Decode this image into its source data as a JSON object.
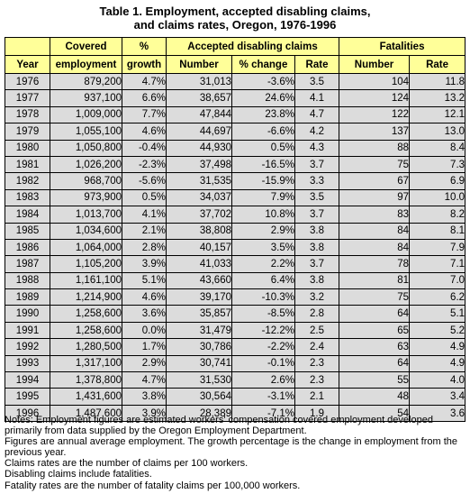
{
  "title": {
    "line1": "Table 1.  Employment, accepted disabling claims,",
    "line2": "and claims rates, Oregon, 1976-1996"
  },
  "headers": {
    "covered": "Covered",
    "pct": "%",
    "accepted_group": "Accepted disabling claims",
    "fatalities_group": "Fatalities",
    "year": "Year",
    "employment": "employment",
    "growth": "growth",
    "number": "Number",
    "pct_change": "% change",
    "rate": "Rate",
    "fat_number": "Number",
    "fat_rate": "Rate"
  },
  "rows": [
    {
      "year": "1976",
      "employment": "879,200",
      "growth": "4.7%",
      "claims": "31,013",
      "change": "-3.6%",
      "rate": "3.5",
      "fat_number": "104",
      "fat_rate": "11.8"
    },
    {
      "year": "1977",
      "employment": "937,100",
      "growth": "6.6%",
      "claims": "38,657",
      "change": "24.6%",
      "rate": "4.1",
      "fat_number": "124",
      "fat_rate": "13.2"
    },
    {
      "year": "1978",
      "employment": "1,009,000",
      "growth": "7.7%",
      "claims": "47,844",
      "change": "23.8%",
      "rate": "4.7",
      "fat_number": "122",
      "fat_rate": "12.1"
    },
    {
      "year": "1979",
      "employment": "1,055,100",
      "growth": "4.6%",
      "claims": "44,697",
      "change": "-6.6%",
      "rate": "4.2",
      "fat_number": "137",
      "fat_rate": "13.0"
    },
    {
      "year": "1980",
      "employment": "1,050,800",
      "growth": "-0.4%",
      "claims": "44,930",
      "change": "0.5%",
      "rate": "4.3",
      "fat_number": "88",
      "fat_rate": "8.4"
    },
    {
      "year": "1981",
      "employment": "1,026,200",
      "growth": "-2.3%",
      "claims": "37,498",
      "change": "-16.5%",
      "rate": "3.7",
      "fat_number": "75",
      "fat_rate": "7.3"
    },
    {
      "year": "1982",
      "employment": "968,700",
      "growth": "-5.6%",
      "claims": "31,535",
      "change": "-15.9%",
      "rate": "3.3",
      "fat_number": "67",
      "fat_rate": "6.9"
    },
    {
      "year": "1983",
      "employment": "973,900",
      "growth": "0.5%",
      "claims": "34,037",
      "change": "7.9%",
      "rate": "3.5",
      "fat_number": "97",
      "fat_rate": "10.0"
    },
    {
      "year": "1984",
      "employment": "1,013,700",
      "growth": "4.1%",
      "claims": "37,702",
      "change": "10.8%",
      "rate": "3.7",
      "fat_number": "83",
      "fat_rate": "8.2"
    },
    {
      "year": "1985",
      "employment": "1,034,600",
      "growth": "2.1%",
      "claims": "38,808",
      "change": "2.9%",
      "rate": "3.8",
      "fat_number": "84",
      "fat_rate": "8.1"
    },
    {
      "year": "1986",
      "employment": "1,064,000",
      "growth": "2.8%",
      "claims": "40,157",
      "change": "3.5%",
      "rate": "3.8",
      "fat_number": "84",
      "fat_rate": "7.9"
    },
    {
      "year": "1987",
      "employment": "1,105,200",
      "growth": "3.9%",
      "claims": "41,033",
      "change": "2.2%",
      "rate": "3.7",
      "fat_number": "78",
      "fat_rate": "7.1"
    },
    {
      "year": "1988",
      "employment": "1,161,100",
      "growth": "5.1%",
      "claims": "43,660",
      "change": "6.4%",
      "rate": "3.8",
      "fat_number": "81",
      "fat_rate": "7.0"
    },
    {
      "year": "1989",
      "employment": "1,214,900",
      "growth": "4.6%",
      "claims": "39,170",
      "change": "-10.3%",
      "rate": "3.2",
      "fat_number": "75",
      "fat_rate": "6.2"
    },
    {
      "year": "1990",
      "employment": "1,258,600",
      "growth": "3.6%",
      "claims": "35,857",
      "change": "-8.5%",
      "rate": "2.8",
      "fat_number": "64",
      "fat_rate": "5.1"
    },
    {
      "year": "1991",
      "employment": "1,258,600",
      "growth": "0.0%",
      "claims": "31,479",
      "change": "-12.2%",
      "rate": "2.5",
      "fat_number": "65",
      "fat_rate": "5.2"
    },
    {
      "year": "1992",
      "employment": "1,280,500",
      "growth": "1.7%",
      "claims": "30,786",
      "change": "-2.2%",
      "rate": "2.4",
      "fat_number": "63",
      "fat_rate": "4.9"
    },
    {
      "year": "1993",
      "employment": "1,317,100",
      "growth": "2.9%",
      "claims": "30,741",
      "change": "-0.1%",
      "rate": "2.3",
      "fat_number": "64",
      "fat_rate": "4.9"
    },
    {
      "year": "1994",
      "employment": "1,378,800",
      "growth": "4.7%",
      "claims": "31,530",
      "change": "2.6%",
      "rate": "2.3",
      "fat_number": "55",
      "fat_rate": "4.0"
    },
    {
      "year": "1995",
      "employment": "1,431,600",
      "growth": "3.8%",
      "claims": "30,564",
      "change": "-3.1%",
      "rate": "2.1",
      "fat_number": "48",
      "fat_rate": "3.4"
    },
    {
      "year": "1996",
      "employment": "1,487,600",
      "growth": "3.9%",
      "claims": "28,389",
      "change": "-7.1%",
      "rate": "1.9",
      "fat_number": "54",
      "fat_rate": "3.6"
    }
  ],
  "notes": [
    "Notes: Employment figures are estimated workers' compensation covered employment developed primarily from data supplied by the Oregon Employment Department.",
    "Figures are annual average employment.  The growth percentage is the change in employment from the previous year.",
    "Claims rates are the number of claims per 100 workers.",
    "Disabling claims include fatalities.",
    "Fatality rates are the number of fatality claims per 100,000 workers."
  ],
  "colors": {
    "header_bg": "#ffff99",
    "row_bg": "#dcdcdc"
  }
}
